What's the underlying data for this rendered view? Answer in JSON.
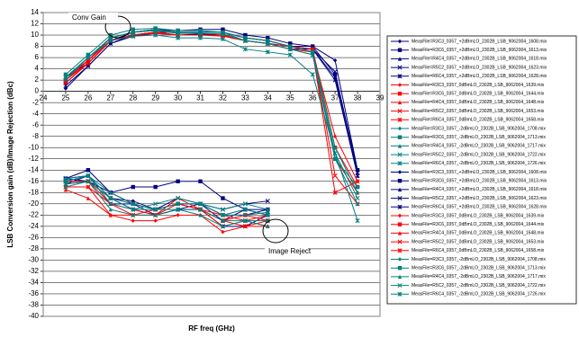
{
  "chart_data": {
    "type": "line",
    "xlabel": "RF freq (GHz)",
    "ylabel": "LSB Conversion gain (dB)/Image Rejection (dBc)",
    "annotations": [
      "Conv Gain",
      "Image Reject"
    ],
    "x": [
      25,
      26,
      27,
      28,
      29,
      30,
      31,
      32,
      33,
      34,
      35,
      36,
      37,
      38
    ],
    "xlim": [
      24,
      39
    ],
    "xticks": [
      24,
      25,
      26,
      27,
      28,
      29,
      30,
      31,
      32,
      33,
      34,
      35,
      36,
      37,
      38,
      39
    ],
    "ylim": [
      -40,
      14
    ],
    "yticks": [
      -40,
      -38,
      -36,
      -34,
      -32,
      -30,
      -28,
      -26,
      -24,
      -22,
      -20,
      -18,
      -16,
      -14,
      -12,
      -10,
      -8,
      -6,
      -4,
      -2,
      0,
      2,
      4,
      6,
      8,
      10,
      12,
      14
    ],
    "grid": true,
    "legend": "right",
    "series": [
      {
        "name": "MeasFile=R3C3_0357_+2dBmLO_2302B_LSB_9062004_1608.mix",
        "color": "#000080",
        "values": [
          0.5,
          4.5,
          8.5,
          10,
          10.5,
          10.5,
          10.5,
          10.5,
          9.5,
          9,
          8,
          8,
          5.5,
          -14
        ]
      },
      {
        "name": "MeasFile=R3C6_0357_+2dBmLO_2302B_LSB_9062004_1613.mix",
        "color": "#000080",
        "values": [
          1.5,
          5,
          9,
          10.5,
          11,
          10.8,
          11,
          11,
          10,
          9.5,
          8.5,
          8,
          3,
          -14
        ]
      },
      {
        "name": "MeasFile=R4C4_0357_+2dBmLO_2302B_LSB_9062004_1618.mix",
        "color": "#000080",
        "values": [
          2,
          5.5,
          9.5,
          10.5,
          11,
          10.5,
          10.5,
          10.5,
          9.5,
          9,
          8,
          7.5,
          2.5,
          -15
        ]
      },
      {
        "name": "MeasFile=R5C2_0357_+2dBmLO_2302B_LSB_9062004_1623.mix",
        "color": "#000080",
        "values": [
          2.5,
          5,
          9,
          10,
          10.5,
          10,
          10.2,
          10,
          9,
          8.5,
          8,
          7.5,
          3.5,
          -14.5
        ]
      },
      {
        "name": "MeasFile=R6C4_0357_+2dBmLO_2302B_LSB_9062004_1628.mix",
        "color": "#000080",
        "values": [
          1,
          4.5,
          8.5,
          9.8,
          10.3,
          10,
          10,
          10,
          9,
          8.5,
          7.5,
          7.5,
          2,
          -15
        ]
      },
      {
        "name": "MeasFile=R3C3_0357_0dBmLO_2302B_LSB_9062004_1639.mix",
        "color": "#ff0000",
        "values": [
          1.5,
          5,
          9,
          10,
          10.5,
          10,
          10,
          10,
          9,
          8.5,
          7.5,
          7,
          -8,
          -16
        ]
      },
      {
        "name": "MeasFile=R3C6_0357_0dBmLO_2302B_LSB_9062004_1644.mix",
        "color": "#ff0000",
        "values": [
          2,
          5.5,
          9.5,
          10.5,
          11,
          10.5,
          10.5,
          10.5,
          9.5,
          9,
          8,
          7.5,
          -10,
          -17
        ]
      },
      {
        "name": "MeasFile=R4C4_0357_0dBmLO_2302B_LSB_9062004_1648.mix",
        "color": "#ff0000",
        "values": [
          2.5,
          5.5,
          9,
          10,
          10.5,
          10,
          10,
          10,
          9,
          8.5,
          7.5,
          7,
          -12,
          -18
        ]
      },
      {
        "name": "MeasFile=R5C2_0357_0dBmLO_2302B_LSB_9062004_1653.mix",
        "color": "#ff0000",
        "values": [
          1.5,
          5,
          9,
          10,
          10.3,
          10,
          10,
          9.8,
          9,
          8.5,
          7.5,
          7,
          -15,
          -20
        ]
      },
      {
        "name": "MeasFile=R6C4_0357_0dBmLO_2302B_LSB_9062004_1658.mix",
        "color": "#ff0000",
        "values": [
          2,
          5,
          9,
          10,
          10.5,
          10,
          10,
          10,
          9,
          8.5,
          8,
          7,
          -18,
          -16
        ]
      },
      {
        "name": "MeasFile=R3C3_0357_-2dBmLO_2302B_LSB_9062004_1708.mix",
        "color": "#008080",
        "values": [
          2.5,
          6,
          9.5,
          10.5,
          10.8,
          10.5,
          10.5,
          10.5,
          9.5,
          9,
          8,
          7,
          -10,
          -18
        ]
      },
      {
        "name": "MeasFile=R3C6_0357_-2dBmLO_2302B_LSB_9062004_1713.mix",
        "color": "#008080",
        "values": [
          3,
          6.5,
          10,
          11,
          11.2,
          10.8,
          10.8,
          10.5,
          9.5,
          9,
          8,
          7,
          -12,
          -17
        ]
      },
      {
        "name": "MeasFile=R4C4_0357_-2dBmLO_2302B_LSB_9062004_1717.mix",
        "color": "#008080",
        "values": [
          2.5,
          6,
          9.5,
          10.5,
          10.8,
          10.3,
          10.3,
          10.2,
          9,
          8.5,
          7.5,
          6.5,
          -12,
          -20
        ]
      },
      {
        "name": "MeasFile=R5C2_0357_-2dBmLO_2302B_LSB_9062004_1722.mix",
        "color": "#008080",
        "values": [
          2,
          6,
          9.5,
          10.5,
          11,
          10.5,
          10.5,
          10.5,
          9,
          8.5,
          7.5,
          6.5,
          -11,
          -19
        ]
      },
      {
        "name": "MeasFile=R6C4_0357_-2dBmLO_2302B_LSB_9062004_1726.mix",
        "color": "#008080",
        "values": [
          2.5,
          6,
          9,
          9.8,
          10,
          9.5,
          9.5,
          9.3,
          7.5,
          7,
          6.5,
          3,
          -11,
          -23
        ]
      },
      {
        "name": "MeasFile=R3C3_0357_+2dBmLO_2302B_LSB_9062004_1608.mix",
        "color": "#000080",
        "values": [
          -15.5,
          -15,
          -19,
          -19.5,
          -21,
          -20,
          -20,
          -22,
          -22,
          -21,
          null,
          null,
          null,
          null
        ]
      },
      {
        "name": "MeasFile=R3C6_0357_+2dBmLO_2302B_LSB_9062004_1613.mix",
        "color": "#000080",
        "values": [
          -15.5,
          -14,
          -18,
          -17,
          -17,
          -16,
          -16,
          -19,
          -21,
          -21,
          null,
          null,
          null,
          null
        ]
      },
      {
        "name": "MeasFile=R4C4_0357_+2dBmLO_2302B_LSB_9062004_1618.mix",
        "color": "#000080",
        "values": [
          -16.5,
          -15,
          -20,
          -20,
          -22,
          -21,
          -20,
          -23,
          -21,
          -22,
          null,
          null,
          null,
          null
        ]
      },
      {
        "name": "MeasFile=R5C2_0357_+2dBmLO_2302B_LSB_9062004_1623.mix",
        "color": "#000080",
        "values": [
          -16,
          -16,
          -18,
          -20,
          -21,
          -19,
          -20,
          -21,
          -20,
          -19.5,
          null,
          null,
          null,
          null
        ]
      },
      {
        "name": "MeasFile=R6C4_0357_+2dBmLO_2302B_LSB_9062004_1628.mix",
        "color": "#000080",
        "values": [
          -15.5,
          -16,
          -19,
          -21,
          -22,
          -21,
          -21,
          -24,
          -24,
          -22,
          null,
          null,
          null,
          null
        ]
      },
      {
        "name": "MeasFile=R3C3_0357_0dBmLO_2302B_LSB_9062004_1639.mix",
        "color": "#ff0000",
        "values": [
          -17,
          -17,
          -22,
          -23,
          -23,
          -22,
          -22,
          -25,
          -24,
          -24,
          null,
          null,
          null,
          null
        ]
      },
      {
        "name": "MeasFile=R3C6_0357_0dBmLO_2302B_LSB_9062004_1644.mix",
        "color": "#ff0000",
        "values": [
          -16,
          -16,
          -19,
          -20,
          -21,
          -20,
          -21,
          -23,
          -22,
          -23,
          null,
          null,
          null,
          null
        ]
      },
      {
        "name": "MeasFile=R4C4_0357_0dBmLO_2302B_LSB_9062004_1648.mix",
        "color": "#ff0000",
        "values": [
          -17.5,
          -19,
          -22,
          -22,
          -22,
          -20,
          -21,
          -24,
          -23,
          -24,
          null,
          null,
          null,
          null
        ]
      },
      {
        "name": "MeasFile=R5C2_0357_0dBmLO_2302B_LSB_9062004_1653.mix",
        "color": "#ff0000",
        "values": [
          -16.5,
          -16,
          -20,
          -21,
          -22,
          -19,
          -21,
          -22,
          -23,
          -22,
          null,
          null,
          null,
          null
        ]
      },
      {
        "name": "MeasFile=R6C4_0357_0dBmLO_2302B_LSB_9062004_1658.mix",
        "color": "#ff0000",
        "values": [
          -17,
          -17,
          -20,
          -22,
          -21,
          -20,
          -21,
          -23,
          -24,
          -23,
          null,
          null,
          null,
          null
        ]
      },
      {
        "name": "MeasFile=R3C3_0357_-2dBmLO_2302B_LSB_9062004_1708.mix",
        "color": "#008080",
        "values": [
          -15.5,
          -15,
          -18,
          -20,
          -21,
          -20,
          -20,
          -22,
          -22,
          -21.5,
          null,
          null,
          null,
          null
        ]
      },
      {
        "name": "MeasFile=R3C6_0357_-2dBmLO_2302B_LSB_9062004_1713.mix",
        "color": "#008080",
        "values": [
          -16,
          -15,
          -19,
          -20,
          -21,
          -20,
          -20,
          -22,
          -21,
          -22,
          null,
          null,
          null,
          null
        ]
      },
      {
        "name": "MeasFile=R4C4_0357_-2dBmLO_2302B_LSB_9062004_1717.mix",
        "color": "#008080",
        "values": [
          -17,
          -16,
          -21,
          -22,
          -22,
          -21,
          -22,
          -24,
          -23,
          -24,
          null,
          null,
          null,
          null
        ]
      },
      {
        "name": "MeasFile=R5C2_0357_-2dBmLO_2302B_LSB_9062004_1722.mix",
        "color": "#008080",
        "values": [
          -16,
          -15,
          -20,
          -21,
          -20,
          -19,
          -20,
          -21,
          -20,
          -21,
          null,
          null,
          null,
          null
        ]
      },
      {
        "name": "MeasFile=R6C4_0357_-2dBmLO_2302B_LSB_9062004_1726.mix",
        "color": "#008080",
        "values": [
          -16.5,
          -16,
          -19,
          -21,
          -21,
          -21,
          -21,
          -23,
          -23,
          -23,
          null,
          null,
          null,
          null
        ]
      }
    ]
  }
}
